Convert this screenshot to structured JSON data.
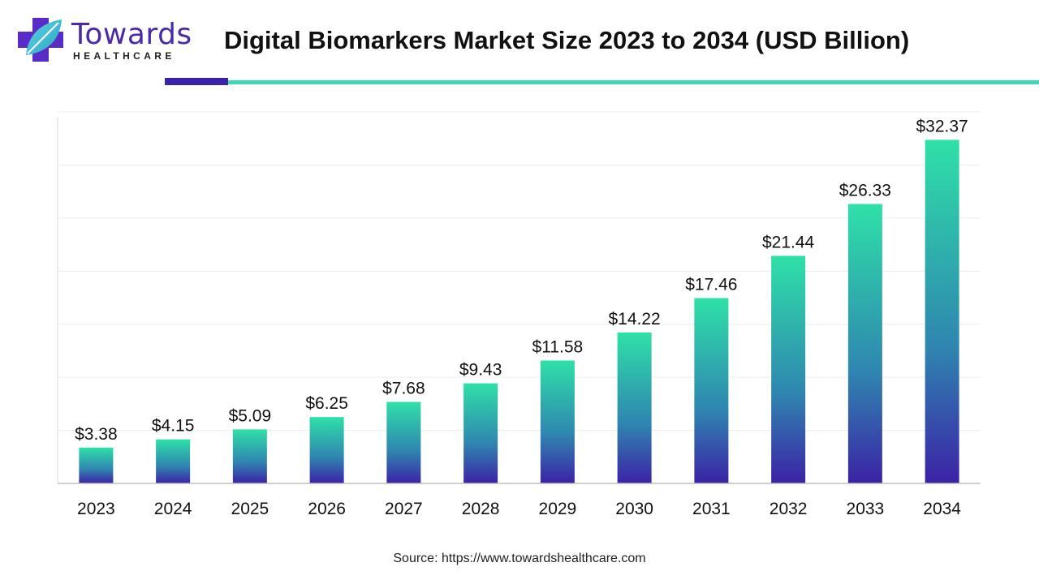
{
  "brand": {
    "name": "Towards",
    "subtitle": "HEALTHCARE",
    "colors": {
      "purple": "#3b22a6",
      "teal": "#3dd8ad",
      "logo_leaf": "#4fc9d2"
    }
  },
  "header": {
    "title": "Digital Biomarkers Market Size 2023 to 2034 (USD Billion)"
  },
  "chart_data": {
    "type": "bar",
    "title": "Digital Biomarkers Market Size 2023 to 2034 (USD Billion)",
    "categories": [
      "2023",
      "2024",
      "2025",
      "2026",
      "2027",
      "2028",
      "2029",
      "2030",
      "2031",
      "2032",
      "2033",
      "2034"
    ],
    "values": [
      3.38,
      4.15,
      5.09,
      6.25,
      7.68,
      9.43,
      11.58,
      14.22,
      17.46,
      21.44,
      26.33,
      32.37
    ],
    "value_labels": [
      "$3.38",
      "$4.15",
      "$5.09",
      "$6.25",
      "$7.68",
      "$9.43",
      "$11.58",
      "$14.22",
      "$17.46",
      "$21.44",
      "$26.33",
      "$32.37"
    ],
    "ylim": [
      0,
      35
    ],
    "grid": true,
    "bar_gradient": {
      "top": "#2fe0a8",
      "middle": "#2f86b0",
      "bottom": "#3b22a6"
    }
  },
  "footer": {
    "source": "Source: https://www.towardshealthcare.com"
  }
}
